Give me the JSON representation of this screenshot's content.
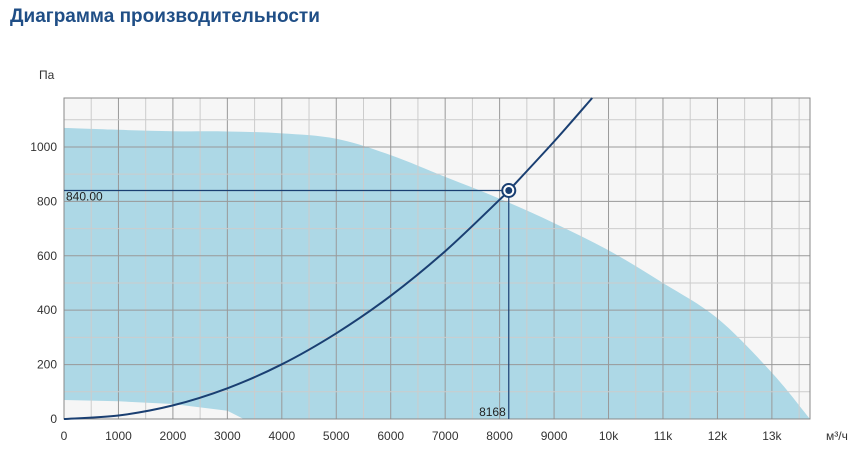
{
  "page": {
    "title": "Диаграмма производительности"
  },
  "chart_data": {
    "type": "area",
    "title": "Диаграмма производительности",
    "ylabel": "Па",
    "xlabel": "м³/ч",
    "xlim": [
      0,
      13700
    ],
    "ylim": [
      0,
      1180
    ],
    "grid": true,
    "x_ticks": [
      {
        "value": 0,
        "label": "0"
      },
      {
        "value": 1000,
        "label": "1000"
      },
      {
        "value": 2000,
        "label": "2000"
      },
      {
        "value": 3000,
        "label": "3000"
      },
      {
        "value": 4000,
        "label": "4000"
      },
      {
        "value": 5000,
        "label": "5000"
      },
      {
        "value": 6000,
        "label": "6000"
      },
      {
        "value": 7000,
        "label": "7000"
      },
      {
        "value": 8000,
        "label": "8000"
      },
      {
        "value": 9000,
        "label": "9000"
      },
      {
        "value": 10000,
        "label": "10k"
      },
      {
        "value": 11000,
        "label": "11k"
      },
      {
        "value": 12000,
        "label": "12k"
      },
      {
        "value": 13000,
        "label": "13k"
      }
    ],
    "y_ticks": [
      {
        "value": 0,
        "label": "0"
      },
      {
        "value": 200,
        "label": "200"
      },
      {
        "value": 400,
        "label": "400"
      },
      {
        "value": 600,
        "label": "600"
      },
      {
        "value": 800,
        "label": "800"
      },
      {
        "value": 1000,
        "label": "1000"
      }
    ],
    "operating_range": {
      "upper": [
        [
          0,
          1070
        ],
        [
          1000,
          1063
        ],
        [
          2000,
          1058
        ],
        [
          3000,
          1057
        ],
        [
          4000,
          1050
        ],
        [
          5000,
          1030
        ],
        [
          6000,
          970
        ],
        [
          7000,
          890
        ],
        [
          8000,
          810
        ],
        [
          9000,
          720
        ],
        [
          10000,
          620
        ],
        [
          11000,
          500
        ],
        [
          12000,
          370
        ],
        [
          13000,
          170
        ],
        [
          13700,
          0
        ]
      ],
      "lower": [
        [
          0,
          70
        ],
        [
          1000,
          65
        ],
        [
          2000,
          55
        ],
        [
          3000,
          30
        ],
        [
          3300,
          0
        ]
      ]
    },
    "system_curve": [
      [
        0,
        0
      ],
      [
        1000,
        13
      ],
      [
        2000,
        50
      ],
      [
        3000,
        113
      ],
      [
        4000,
        201
      ],
      [
        5000,
        315
      ],
      [
        6000,
        453
      ],
      [
        7000,
        617
      ],
      [
        8000,
        806
      ],
      [
        8168,
        840
      ],
      [
        9000,
        1020
      ],
      [
        9700,
        1180
      ]
    ],
    "operating_point": {
      "x": 8168,
      "y": 840,
      "x_label": "8168",
      "y_label": "840.00"
    },
    "colors": {
      "range_fill": "#add8e6",
      "curve": "#1a3f72",
      "plot_bg": "#f6f6f6",
      "grid": "#9a9a9a",
      "title": "#1f4e86"
    }
  }
}
